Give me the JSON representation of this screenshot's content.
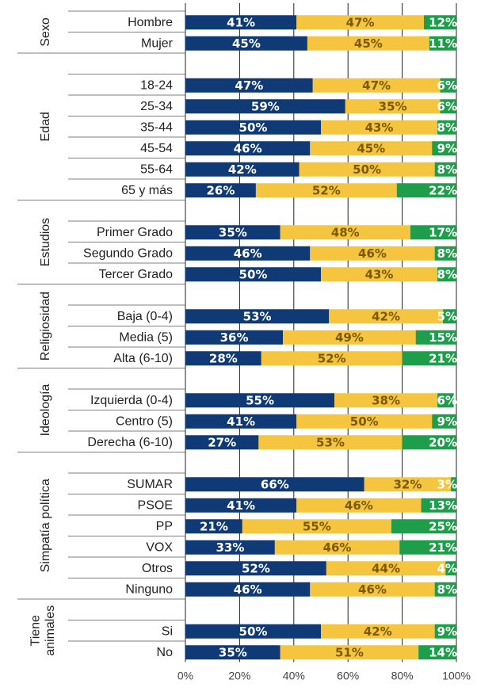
{
  "chart_data": {
    "type": "bar",
    "orientation": "horizontal",
    "stacked": true,
    "xlim": [
      0,
      100
    ],
    "x_ticks": [
      "0%",
      "20%",
      "40%",
      "60%",
      "80%",
      "100%"
    ],
    "grid": true,
    "colors": [
      "#0f3a75",
      "#f5c540",
      "#1e9e4a"
    ],
    "label_colors": [
      "#ffffff",
      "#7a5a00",
      "#ffffff"
    ],
    "groups": [
      {
        "name": "Sexo",
        "categories": [
          {
            "label": "Hombre",
            "values": [
              41,
              47,
              12
            ]
          },
          {
            "label": "Mujer",
            "values": [
              45,
              45,
              11
            ]
          }
        ]
      },
      {
        "name": "Edad",
        "categories": [
          {
            "label": "18-24",
            "values": [
              47,
              47,
              6
            ]
          },
          {
            "label": "25-34",
            "values": [
              59,
              35,
              6
            ]
          },
          {
            "label": "35-44",
            "values": [
              50,
              43,
              8
            ]
          },
          {
            "label": "45-54",
            "values": [
              46,
              45,
              9
            ]
          },
          {
            "label": "55-64",
            "values": [
              42,
              50,
              8
            ]
          },
          {
            "label": "65 y más",
            "values": [
              26,
              52,
              22
            ]
          }
        ]
      },
      {
        "name": "Estudios",
        "categories": [
          {
            "label": "Primer Grado",
            "values": [
              35,
              48,
              17
            ]
          },
          {
            "label": "Segundo Grado",
            "values": [
              46,
              46,
              8
            ]
          },
          {
            "label": "Tercer Grado",
            "values": [
              50,
              43,
              8
            ]
          }
        ]
      },
      {
        "name": "Religiosidad",
        "categories": [
          {
            "label": "Baja (0-4)",
            "values": [
              53,
              42,
              5
            ]
          },
          {
            "label": "Media (5)",
            "values": [
              36,
              49,
              15
            ]
          },
          {
            "label": "Alta (6-10)",
            "values": [
              28,
              52,
              21
            ]
          }
        ]
      },
      {
        "name": "Ideología",
        "categories": [
          {
            "label": "Izquierda (0-4)",
            "values": [
              55,
              38,
              6
            ]
          },
          {
            "label": "Centro (5)",
            "values": [
              41,
              50,
              9
            ]
          },
          {
            "label": "Derecha (6-10)",
            "values": [
              27,
              53,
              20
            ]
          }
        ]
      },
      {
        "name": "Simpatía política",
        "categories": [
          {
            "label": "SUMAR",
            "values": [
              66,
              32,
              3
            ]
          },
          {
            "label": "PSOE",
            "values": [
              41,
              46,
              13
            ]
          },
          {
            "label": "PP",
            "values": [
              21,
              55,
              25
            ]
          },
          {
            "label": "VOX",
            "values": [
              33,
              46,
              21
            ]
          },
          {
            "label": "Otros",
            "values": [
              52,
              44,
              4
            ]
          },
          {
            "label": "Ninguno",
            "values": [
              46,
              46,
              8
            ]
          }
        ]
      },
      {
        "name": "Tiene animales",
        "categories": [
          {
            "label": "Si",
            "values": [
              50,
              42,
              9
            ]
          },
          {
            "label": "No",
            "values": [
              35,
              51,
              14
            ]
          }
        ]
      }
    ]
  }
}
